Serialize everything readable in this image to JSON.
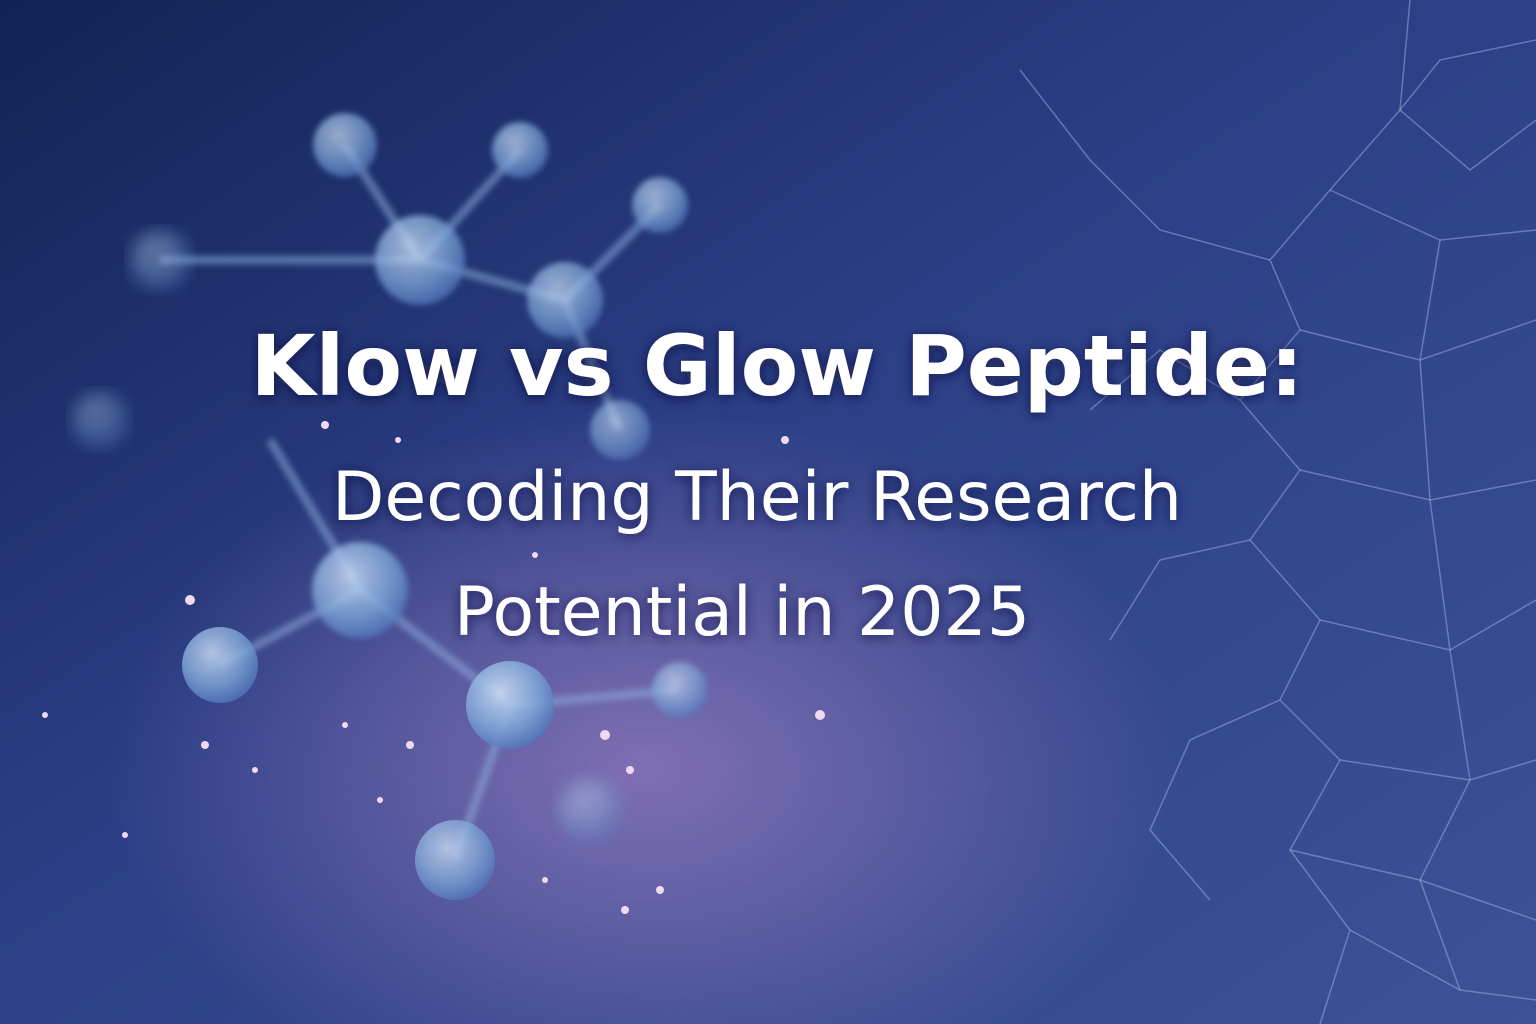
{
  "title": "Klow vs Glow Peptide:",
  "subtitle_lines": [
    "Decoding Their Research",
    "Potential in 2025"
  ]
}
